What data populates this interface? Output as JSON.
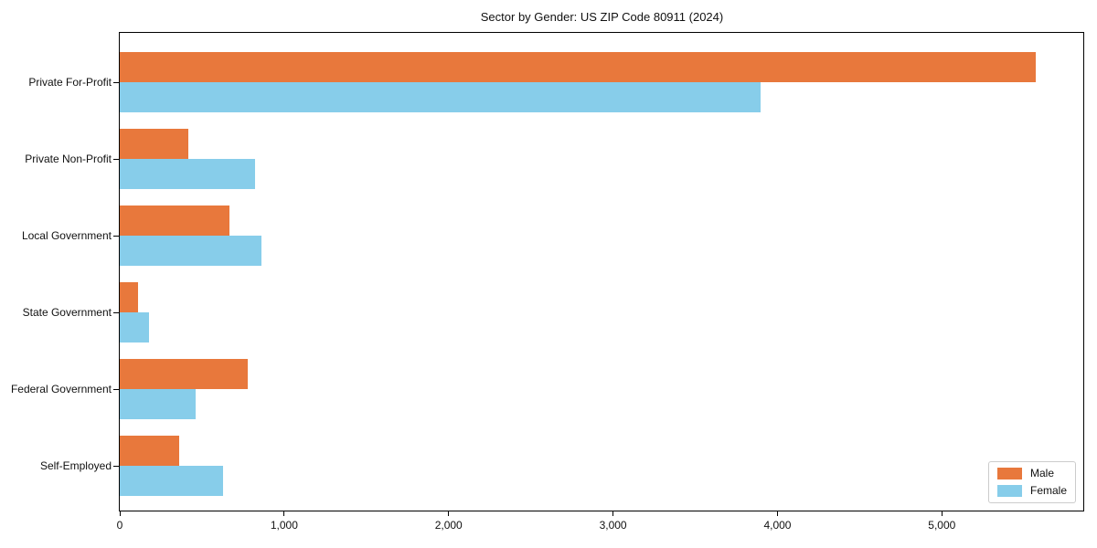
{
  "chart_data": {
    "type": "bar",
    "orientation": "horizontal",
    "title": "Sector by Gender: US ZIP Code 80911 (2024)",
    "categories": [
      "Private For-Profit",
      "Private Non-Profit",
      "Local Government",
      "State Government",
      "Federal Government",
      "Self-Employed"
    ],
    "series": [
      {
        "name": "Male",
        "color": "#e8783c",
        "values": [
          5570,
          415,
          665,
          110,
          780,
          360
        ]
      },
      {
        "name": "Female",
        "color": "#87cdea",
        "values": [
          3900,
          825,
          860,
          180,
          460,
          630
        ]
      }
    ],
    "xlabel": "",
    "ylabel": "",
    "xlim": [
      0,
      5860
    ],
    "xticks": [
      0,
      1000,
      2000,
      3000,
      4000,
      5000
    ],
    "xtick_labels": [
      "0",
      "1,000",
      "2,000",
      "3,000",
      "4,000",
      "5,000"
    ],
    "legend_position": "lower right",
    "grid": false
  },
  "styles": {
    "background": "#ffffff",
    "spine_color": "#000000",
    "text_color": "#111111",
    "legend_border": "#cccccc"
  }
}
